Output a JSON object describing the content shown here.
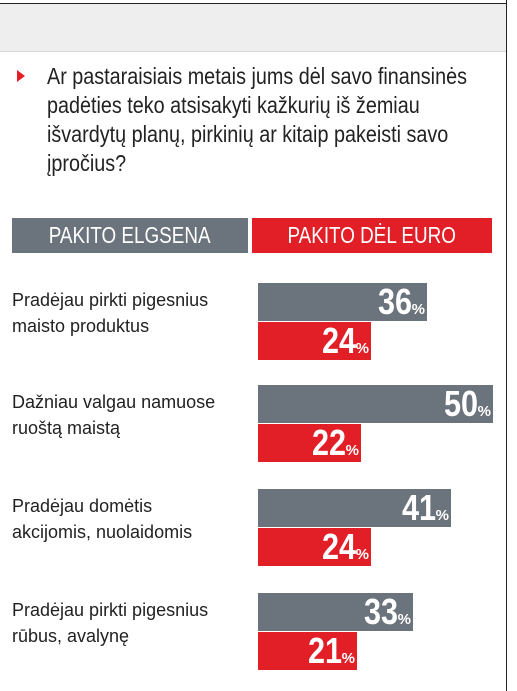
{
  "question": "Ar pastaraisiais metais jums dėl savo finansinės padėties teko atsisakyti kažkurių iš žemiau išvardytų planų, pirkinių ar kitaip pakeisti savo įpročius?",
  "colors": {
    "gray": "#6b747c",
    "red": "#e21e26"
  },
  "chart_data": {
    "type": "bar",
    "orientation": "horizontal",
    "categories": [
      "Pradėjau pirkti pigesnius maisto produktus",
      "Dažniau valgau namuose ruoštą maistą",
      "Pradėjau domėtis akcijomis, nuolaidomis",
      "Pradėjau pirkti pigesnius rūbus, avalynę"
    ],
    "category_lines": [
      [
        "Pradėjau pirkti pigesnius",
        "maisto produktus"
      ],
      [
        "Dažniau valgau namuose",
        "ruoštą maistą"
      ],
      [
        "Pradėjau domėtis",
        "akcijomis, nuolaidomis"
      ],
      [
        "Pradėjau pirkti pigesnius",
        "rūbus, avalynę"
      ]
    ],
    "series": [
      {
        "name": "PAKITO ELGSENA",
        "values": [
          36,
          50,
          41,
          33
        ],
        "color": "#6b747c"
      },
      {
        "name": "PAKITO DĖL EURO",
        "values": [
          24,
          22,
          24,
          21
        ],
        "color": "#e21e26"
      }
    ],
    "unit": "%",
    "xlim": [
      0,
      50
    ]
  }
}
